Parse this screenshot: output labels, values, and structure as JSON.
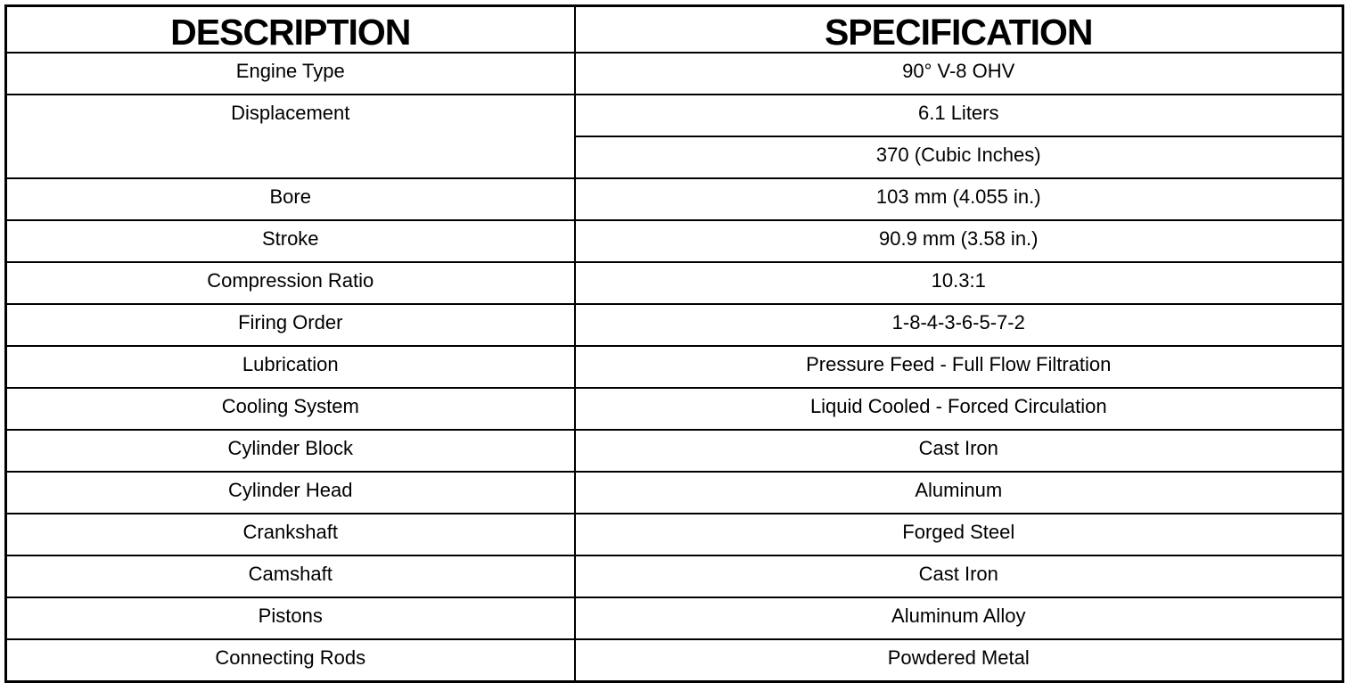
{
  "headers": {
    "description": "DESCRIPTION",
    "specification": "SPECIFICATION"
  },
  "rows": [
    {
      "description": "Engine Type",
      "specification": [
        "90° V-8 OHV"
      ]
    },
    {
      "description": "Displacement",
      "specification": [
        "6.1 Liters",
        "370 (Cubic Inches)"
      ]
    },
    {
      "description": "Bore",
      "specification": [
        "103 mm (4.055 in.)"
      ]
    },
    {
      "description": "Stroke",
      "specification": [
        "90.9 mm (3.58 in.)"
      ]
    },
    {
      "description": "Compression Ratio",
      "specification": [
        "10.3:1"
      ]
    },
    {
      "description": "Firing Order",
      "specification": [
        "1-8-4-3-6-5-7-2"
      ]
    },
    {
      "description": "Lubrication",
      "specification": [
        "Pressure Feed - Full Flow Filtration"
      ]
    },
    {
      "description": "Cooling System",
      "specification": [
        "Liquid Cooled - Forced Circulation"
      ]
    },
    {
      "description": "Cylinder Block",
      "specification": [
        "Cast Iron"
      ]
    },
    {
      "description": "Cylinder Head",
      "specification": [
        "Aluminum"
      ]
    },
    {
      "description": "Crankshaft",
      "specification": [
        "Forged Steel"
      ]
    },
    {
      "description": "Camshaft",
      "specification": [
        "Cast Iron"
      ]
    },
    {
      "description": "Pistons",
      "specification": [
        "Aluminum Alloy"
      ]
    },
    {
      "description": "Connecting Rods",
      "specification": [
        "Powdered Metal"
      ]
    }
  ]
}
